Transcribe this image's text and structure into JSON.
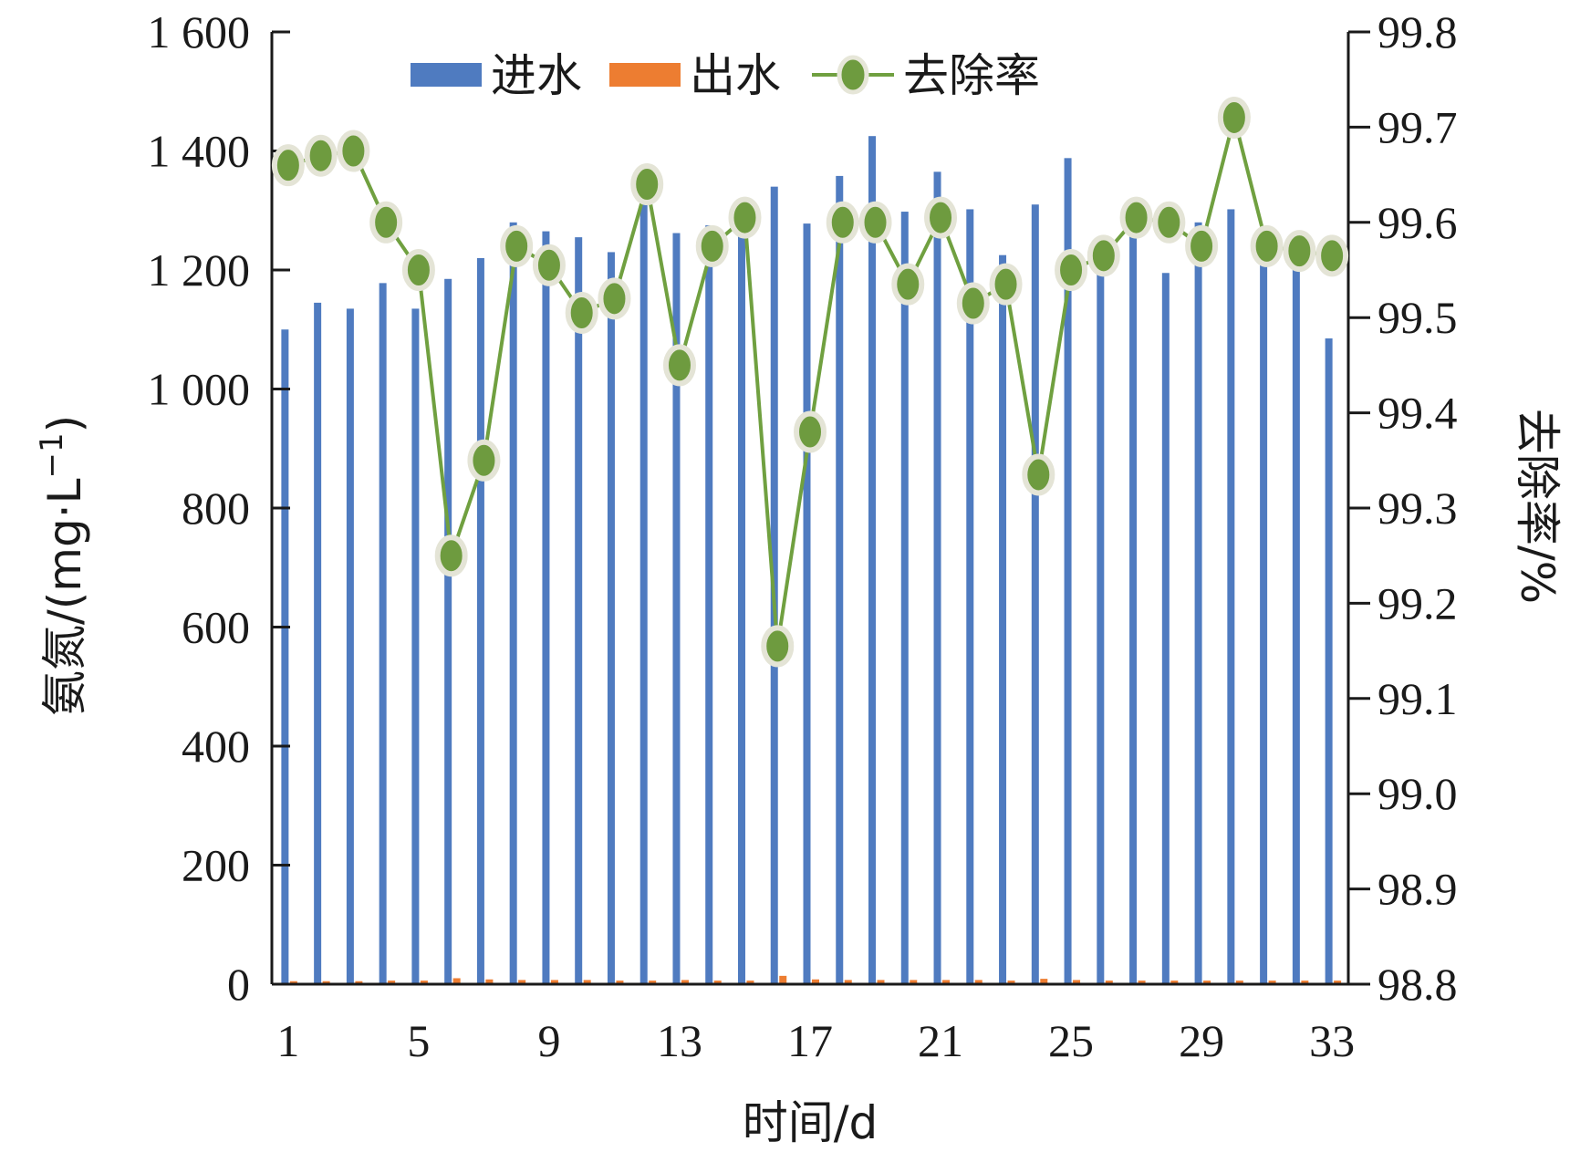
{
  "chart_data": {
    "type": "bar",
    "x": [
      1,
      2,
      3,
      4,
      5,
      6,
      7,
      8,
      9,
      10,
      11,
      12,
      13,
      14,
      15,
      16,
      17,
      18,
      19,
      20,
      21,
      22,
      23,
      24,
      25,
      26,
      27,
      28,
      29,
      30,
      31,
      32,
      33
    ],
    "xticks": [
      "1",
      "5",
      "9",
      "13",
      "17",
      "21",
      "25",
      "29",
      "33"
    ],
    "xlabel": "时间/d",
    "ylabel_left": "氨氮/(mg·L",
    "ylabel_left_sup": "−1",
    "ylabel_left_close": ")",
    "ylabel_right": "去除率/%",
    "yticks_left": [
      "0",
      "200",
      "400",
      "600",
      "800",
      "1 000",
      "1 200",
      "1 400",
      "1 600"
    ],
    "yticks_right": [
      "98.8",
      "98.9",
      "99.0",
      "99.1",
      "99.2",
      "99.3",
      "99.4",
      "99.5",
      "99.6",
      "99.7",
      "99.8"
    ],
    "ylim_left": [
      0,
      1600
    ],
    "ylim_right": [
      98.8,
      99.8
    ],
    "legend_position": "top",
    "series": [
      {
        "name": "进水",
        "type": "bar",
        "axis": "left",
        "color": "#4f7bc0",
        "values": [
          1100,
          1145,
          1135,
          1178,
          1135,
          1185,
          1220,
          1280,
          1265,
          1255,
          1230,
          1310,
          1262,
          1275,
          1270,
          1340,
          1278,
          1358,
          1425,
          1298,
          1365,
          1302,
          1225,
          1310,
          1388,
          1250,
          1268,
          1195,
          1280,
          1302,
          1265,
          1240,
          1085
        ]
      },
      {
        "name": "出水",
        "type": "bar",
        "axis": "left",
        "color": "#ed7d31",
        "values": [
          5,
          5,
          5,
          6,
          6,
          10,
          8,
          7,
          7,
          7,
          6,
          6,
          7,
          6,
          6,
          14,
          8,
          7,
          7,
          7,
          7,
          7,
          6,
          9,
          7,
          6,
          6,
          6,
          6,
          6,
          6,
          6,
          6
        ]
      },
      {
        "name": "去除率",
        "type": "line",
        "axis": "right",
        "color": "#70a040",
        "marker_color": "#6e9b3f",
        "values": [
          99.66,
          99.67,
          99.675,
          99.6,
          99.55,
          99.25,
          99.35,
          99.575,
          99.555,
          99.505,
          99.52,
          99.64,
          99.45,
          99.575,
          99.605,
          99.155,
          99.38,
          99.6,
          99.6,
          99.535,
          99.605,
          99.515,
          99.535,
          99.335,
          99.55,
          99.565,
          99.605,
          99.6,
          99.575,
          99.71,
          99.575,
          99.57,
          99.565
        ]
      }
    ]
  }
}
